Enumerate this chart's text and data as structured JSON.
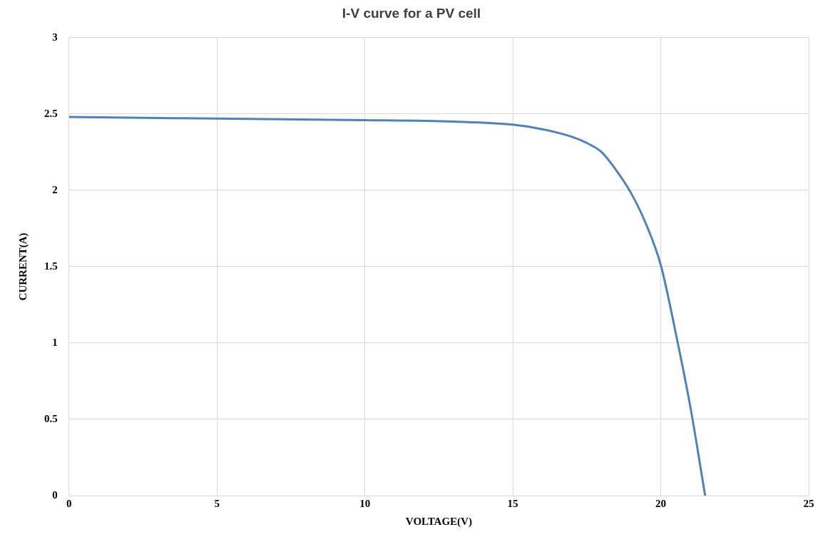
{
  "chart_data": {
    "type": "line",
    "title": "I-V curve for a PV cell",
    "xlabel": "VOLTAGE(V)",
    "ylabel": "CURRENT(A)",
    "series": [
      {
        "color": "#4f81bd",
        "x": [
          0,
          5,
          10,
          13,
          15,
          16,
          17,
          17.5,
          18,
          18.5,
          19,
          19.5,
          20,
          20.5,
          21,
          21.5
        ],
        "values": [
          2.48,
          2.47,
          2.46,
          2.45,
          2.43,
          2.4,
          2.35,
          2.31,
          2.25,
          2.13,
          1.98,
          1.78,
          1.51,
          1.07,
          0.58,
          0
        ]
      }
    ],
    "xlim": [
      0,
      25
    ],
    "xticks": [
      0,
      5,
      10,
      15,
      20,
      25
    ],
    "ylim": [
      0,
      3
    ],
    "yticks": [
      0,
      0.5,
      1,
      1.5,
      2,
      2.5,
      3
    ],
    "grid": true,
    "legend": false,
    "marker": "none",
    "line_style": "solid"
  }
}
